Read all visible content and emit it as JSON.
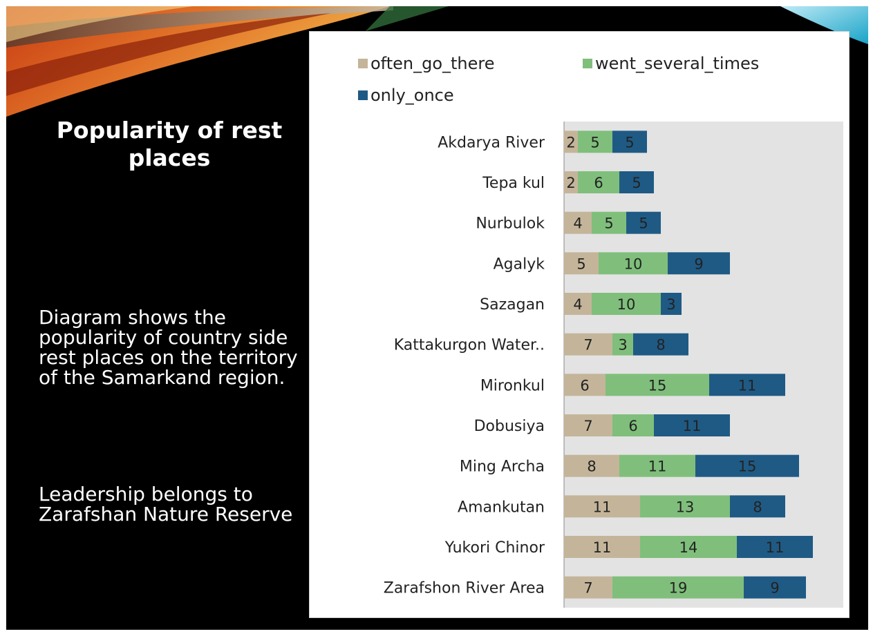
{
  "slide": {
    "title": "Popularity of rest places",
    "description": "Diagram  shows the popularity of country side rest places on the territory of the Samarkand region.",
    "leadership": "Leadership belongs to Zarafshan Nature Reserve"
  },
  "colors": {
    "often_go_there": "#c4b59a",
    "went_several_times": "#7fbf7b",
    "only_once": "#1f5a85",
    "plot_background": "#e3e3e3"
  },
  "chart_data": {
    "type": "bar",
    "orientation": "horizontal",
    "stacked": true,
    "categories": [
      "Akdarya River",
      "Tepa kul",
      "Nurbulok",
      "Agalyk",
      "Sazagan",
      "Kattakurgon Water..",
      "Mironkul",
      "Dobusiya",
      "Ming Archa",
      "Amankutan",
      "Yukori Chinor",
      "Zarafshon River Area"
    ],
    "series": [
      {
        "name": "often_go_there",
        "values": [
          2,
          2,
          4,
          5,
          4,
          7,
          6,
          7,
          8,
          11,
          11,
          7
        ]
      },
      {
        "name": "went_several_times",
        "values": [
          5,
          6,
          5,
          10,
          10,
          3,
          15,
          6,
          11,
          13,
          14,
          19
        ]
      },
      {
        "name": "only_once",
        "values": [
          5,
          5,
          5,
          9,
          3,
          8,
          11,
          11,
          15,
          8,
          11,
          9
        ]
      }
    ],
    "xlim": [
      0,
      38
    ],
    "data_labels": true,
    "legend_position": "top",
    "grid": false
  }
}
